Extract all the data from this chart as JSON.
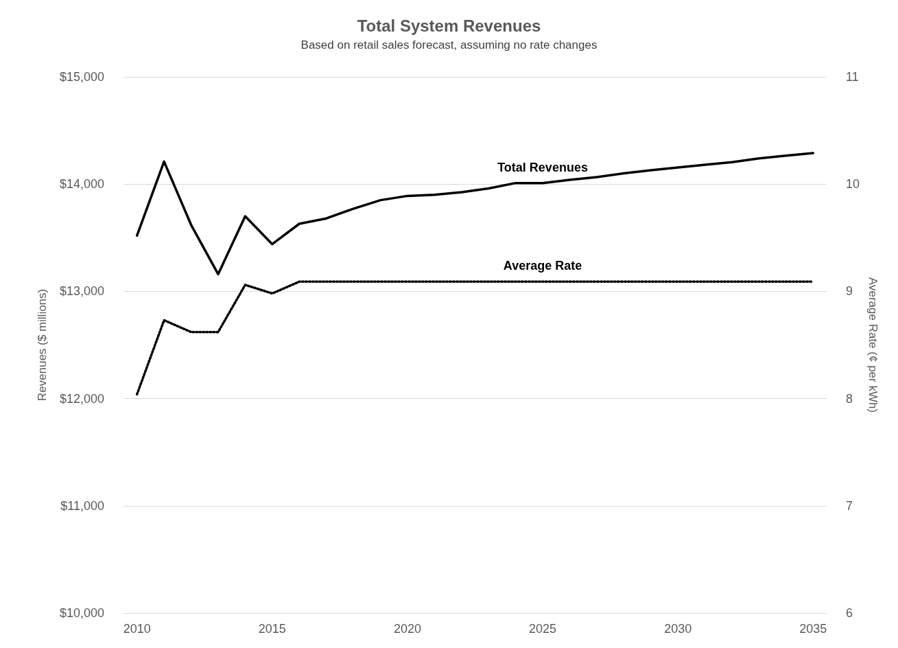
{
  "chart_data": {
    "type": "line",
    "title": "Total System Revenues",
    "subtitle": "Based on retail sales forecast, assuming no rate changes",
    "ylabel": "Revenues ($ millions)",
    "y2label": "Average Rate (¢ per kWh)",
    "x": [
      2010,
      2011,
      2012,
      2013,
      2014,
      2015,
      2016,
      2017,
      2018,
      2019,
      2020,
      2021,
      2022,
      2023,
      2024,
      2025,
      2026,
      2027,
      2028,
      2029,
      2030,
      2031,
      2032,
      2033,
      2034,
      2035
    ],
    "series": [
      {
        "name": "Total Revenues",
        "color": "#000000",
        "line_style": "solid",
        "values": [
          13520,
          14210,
          13620,
          13160,
          13700,
          13440,
          13630,
          13680,
          13770,
          13850,
          13890,
          13900,
          13925,
          13960,
          14010,
          14010,
          14040,
          14065,
          14100,
          14130,
          14155,
          14180,
          14205,
          14240,
          14265,
          14290
        ]
      },
      {
        "name": "Average Rate",
        "color": "#000000",
        "line_style": "dotted",
        "axis": "y2",
        "values": [
          8.04,
          8.73,
          8.62,
          8.62,
          9.06,
          8.98,
          9.09,
          9.09,
          9.09,
          9.09,
          9.09,
          9.09,
          9.09,
          9.09,
          9.09,
          9.09,
          9.09,
          9.09,
          9.09,
          9.09,
          9.09,
          9.09,
          9.09,
          9.09,
          9.09,
          9.09
        ]
      }
    ],
    "xlim": [
      2009.5,
      2035.5
    ],
    "xticks": [
      2010,
      2015,
      2020,
      2025,
      2030,
      2035
    ],
    "ylim": [
      10000,
      15000
    ],
    "yticks": [
      {
        "value": 10000,
        "label": "$10,000"
      },
      {
        "value": 11000,
        "label": "$11,000"
      },
      {
        "value": 12000,
        "label": "$12,000"
      },
      {
        "value": 13000,
        "label": "$13,000"
      },
      {
        "value": 14000,
        "label": "$14,000"
      },
      {
        "value": 15000,
        "label": "$15,000"
      }
    ],
    "y2lim": [
      6,
      11
    ],
    "y2ticks": [
      6,
      7,
      8,
      9,
      10,
      11
    ],
    "grid": "y",
    "legend": false,
    "marker": "none"
  }
}
